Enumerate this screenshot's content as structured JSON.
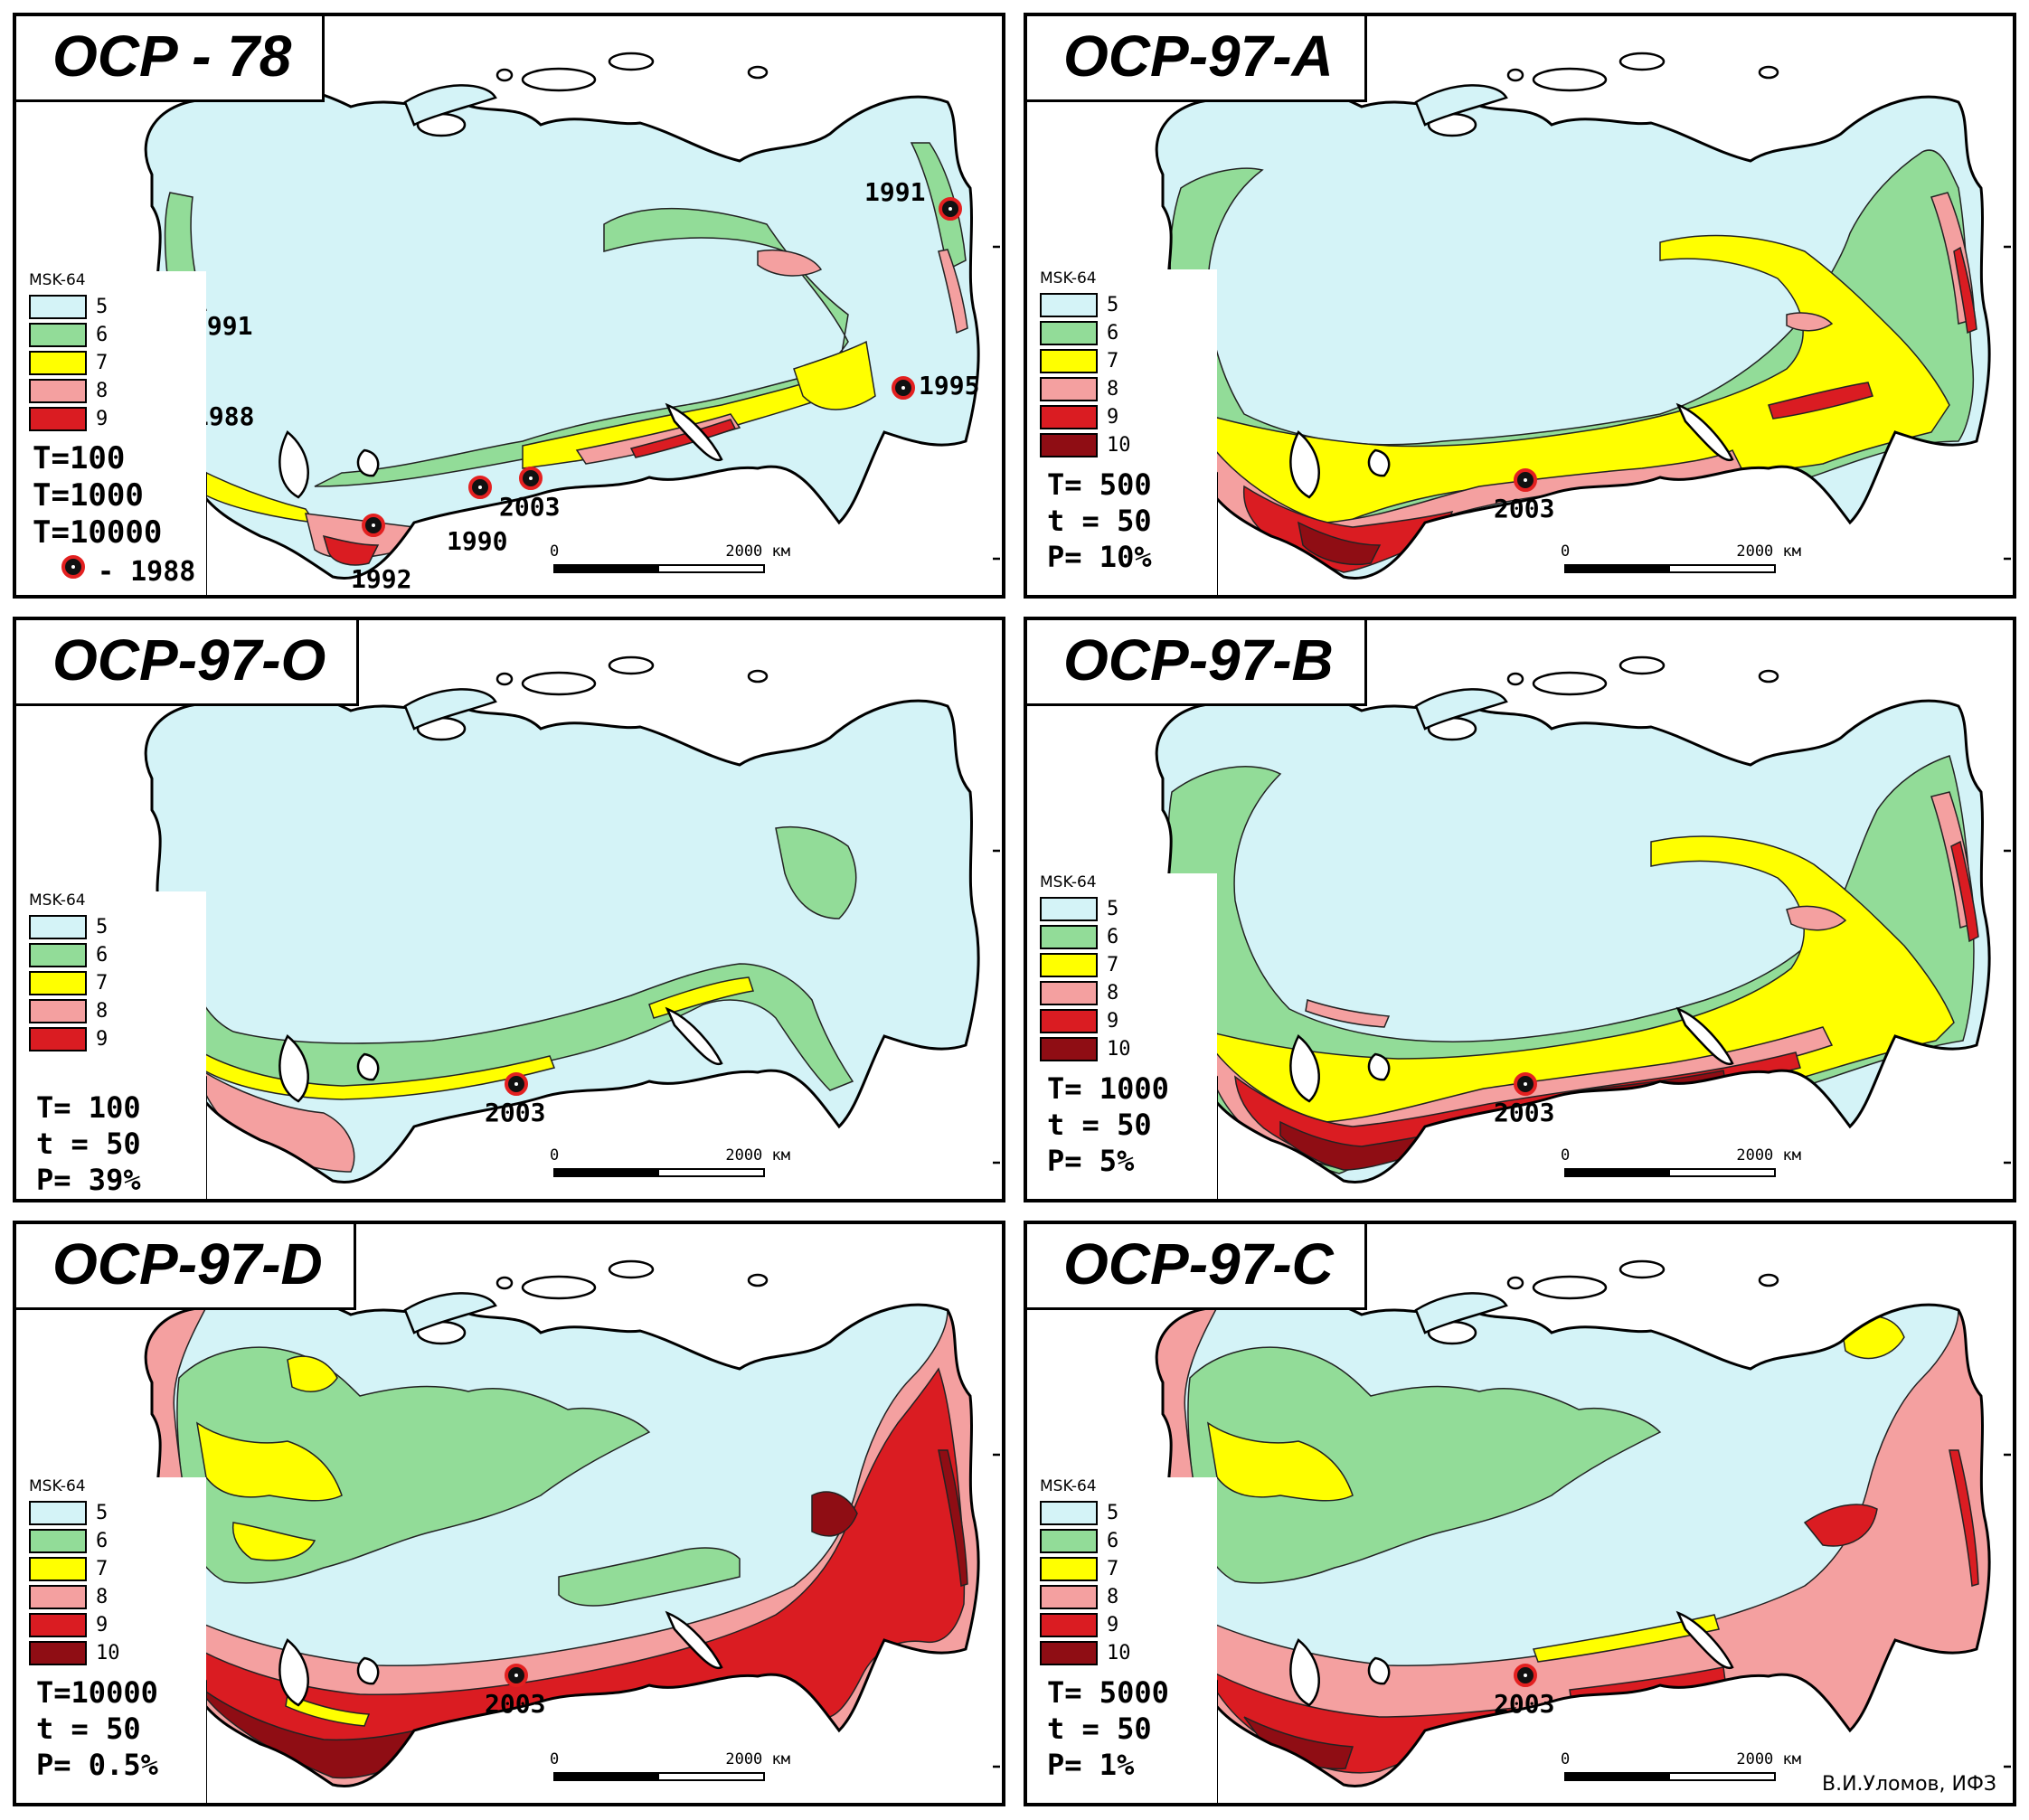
{
  "legend_heading": "MSK-64",
  "colors": {
    "5": "#d4f3f7",
    "6": "#92dc98",
    "7": "#ffff00",
    "8": "#f4a0a0",
    "9": "#da1c22",
    "10": "#8f0d14",
    "ocean": "#ffffff",
    "outline": "#000000"
  },
  "scale_bar": {
    "start_label": "0",
    "end_label": "2000 км"
  },
  "panels": [
    {
      "id": "ocr78",
      "title": "OCP - 78",
      "intensities": [
        "5",
        "6",
        "7",
        "8",
        "9"
      ],
      "params": [
        "T=100",
        "T=1000",
        "T=10000"
      ],
      "legend_marker_label": "- 1988",
      "events": [
        "1991",
        "1991",
        "1988",
        "1995",
        "2003",
        "1990",
        "1992"
      ],
      "fill_profile": "ocr78"
    },
    {
      "id": "ocr97a",
      "title": "OCP-97-A",
      "intensities": [
        "5",
        "6",
        "7",
        "8",
        "9",
        "10"
      ],
      "params": [
        "T= 500",
        "t = 50",
        "P= 10%"
      ],
      "events": [
        "2003"
      ],
      "fill_profile": "A"
    },
    {
      "id": "ocr97o",
      "title": "OCP-97-O",
      "intensities": [
        "5",
        "6",
        "7",
        "8",
        "9"
      ],
      "params": [
        "T= 100",
        "t = 50",
        "P= 39%"
      ],
      "events": [
        "2003"
      ],
      "fill_profile": "O"
    },
    {
      "id": "ocr97b",
      "title": "OCP-97-B",
      "intensities": [
        "5",
        "6",
        "7",
        "8",
        "9",
        "10"
      ],
      "params": [
        "T= 1000",
        "t = 50",
        "P= 5%"
      ],
      "events": [
        "2003"
      ],
      "fill_profile": "B"
    },
    {
      "id": "ocr97d",
      "title": "OCP-97-D",
      "intensities": [
        "5",
        "6",
        "7",
        "8",
        "9",
        "10"
      ],
      "params": [
        "T=10000",
        "t = 50",
        "P= 0.5%"
      ],
      "events": [
        "2003"
      ],
      "fill_profile": "D"
    },
    {
      "id": "ocr97c",
      "title": "OCP-97-C",
      "intensities": [
        "5",
        "6",
        "7",
        "8",
        "9",
        "10"
      ],
      "params": [
        "T= 5000",
        "t = 50",
        "P= 1%"
      ],
      "events": [
        "2003"
      ],
      "fill_profile": "C",
      "credit": "В.И.Уломов, ИФЗ"
    }
  ]
}
